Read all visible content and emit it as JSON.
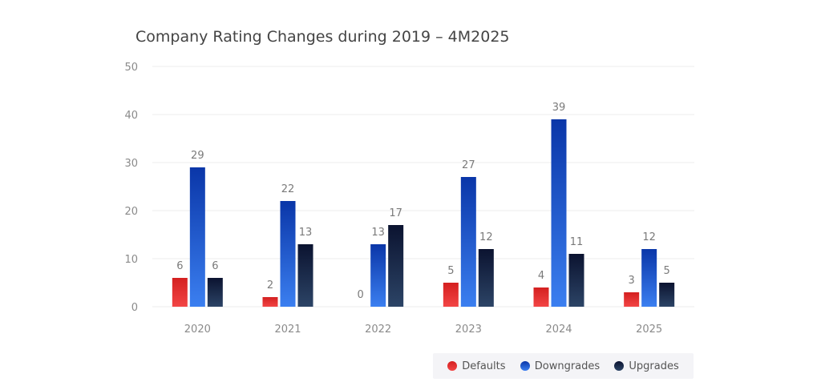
{
  "chart_data": {
    "type": "bar",
    "title": "Company Rating Changes during 2019 – 4M2025",
    "categories": [
      "2020",
      "2021",
      "2022",
      "2023",
      "2024",
      "2025"
    ],
    "series": [
      {
        "name": "Defaults",
        "values": [
          6,
          2,
          0,
          5,
          4,
          3
        ],
        "color": "#e02020"
      },
      {
        "name": "Downgrades",
        "values": [
          29,
          22,
          13,
          27,
          39,
          12
        ],
        "color": "#1e4fd0"
      },
      {
        "name": "Upgrades",
        "values": [
          6,
          13,
          17,
          12,
          11,
          5
        ],
        "color": "#14213f"
      }
    ],
    "ylim": [
      0,
      50
    ],
    "yticks": [
      "0",
      "10",
      "20",
      "30",
      "40",
      "50"
    ],
    "xlabel": "",
    "ylabel": "",
    "grid": true,
    "legend_position": "bottom-right"
  }
}
